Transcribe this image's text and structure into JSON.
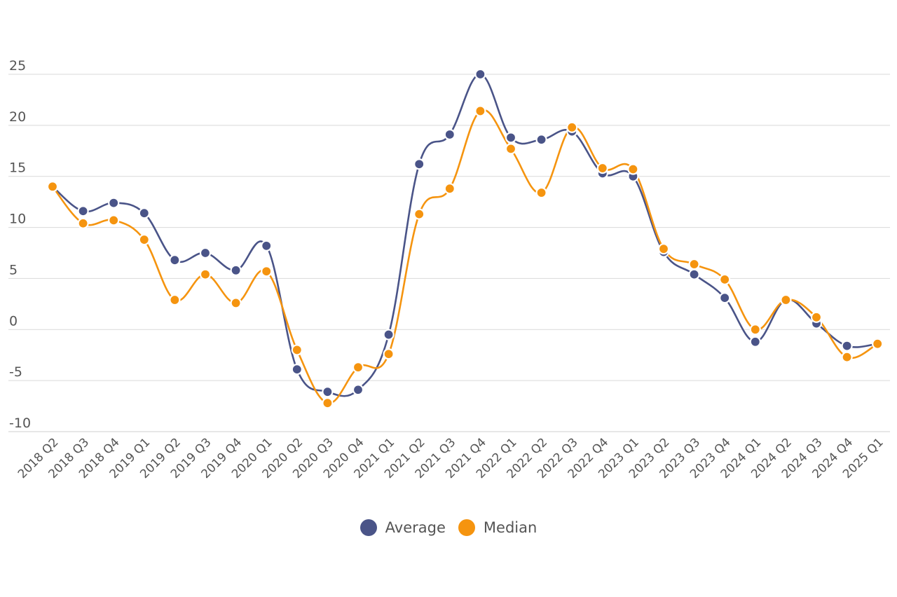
{
  "chart_data": {
    "type": "line",
    "title": "",
    "xlabel": "",
    "ylabel": "",
    "ylim": [
      -10,
      25
    ],
    "y_ticks": [
      "25",
      "20",
      "15",
      "10",
      "5",
      "0",
      "-5",
      "-10"
    ],
    "y_tick_values": [
      25,
      20,
      15,
      10,
      5,
      0,
      -5,
      -10
    ],
    "grid": true,
    "legend_position": "bottom-center",
    "categories": [
      "2018 Q2",
      "2018 Q3",
      "2018 Q4",
      "2019 Q1",
      "2019 Q2",
      "2019 Q3",
      "2019 Q4",
      "2020 Q1",
      "2020 Q2",
      "2020 Q3",
      "2020 Q4",
      "2021 Q1",
      "2021 Q2",
      "2021 Q3",
      "2021 Q4",
      "2022 Q1",
      "2022 Q2",
      "2022 Q3",
      "2022 Q4",
      "2023 Q1",
      "2023 Q2",
      "2023 Q3",
      "2023 Q4",
      "2024 Q1",
      "2024 Q2",
      "2024 Q3",
      "2024 Q4",
      "2025 Q1"
    ],
    "series": [
      {
        "name": "Average",
        "color": "#4a5488",
        "values": [
          14.0,
          11.6,
          12.4,
          11.4,
          6.8,
          7.5,
          5.8,
          8.2,
          -3.9,
          -6.1,
          -5.9,
          -0.5,
          16.2,
          19.1,
          25.0,
          18.8,
          18.6,
          19.4,
          15.3,
          15.0,
          7.6,
          5.4,
          3.1,
          -1.2,
          2.9,
          0.6,
          -1.6,
          -1.4
        ]
      },
      {
        "name": "Median",
        "color": "#f5940f",
        "values": [
          14.0,
          10.4,
          10.7,
          8.8,
          2.9,
          5.4,
          2.6,
          5.7,
          -2.0,
          -7.2,
          -3.7,
          -2.4,
          11.3,
          13.8,
          21.4,
          17.7,
          13.4,
          19.8,
          15.8,
          15.7,
          7.9,
          6.4,
          4.9,
          0.0,
          2.9,
          1.2,
          -2.7,
          -1.4
        ]
      }
    ]
  },
  "legend": {
    "items": [
      {
        "label": "Average",
        "color": "#4a5488"
      },
      {
        "label": "Median",
        "color": "#f5940f"
      }
    ]
  }
}
